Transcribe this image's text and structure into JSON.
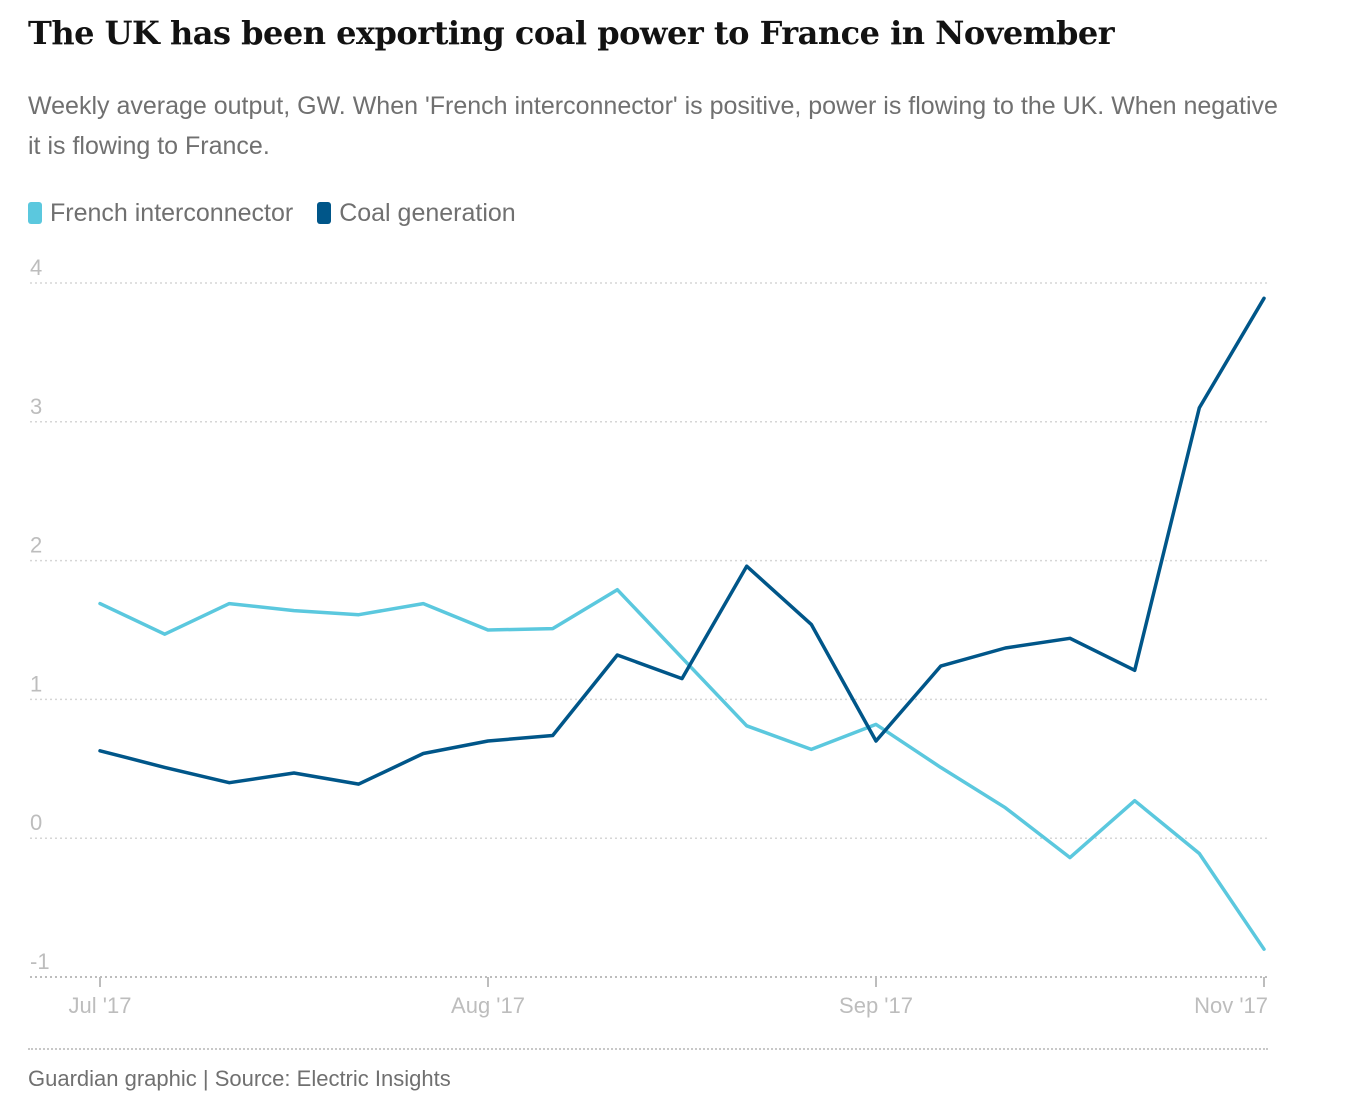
{
  "title": "The UK has been exporting coal power to France in November",
  "subtitle": "Weekly average output, GW. When 'French interconnector' is positive, power is flowing to the UK. When negative it is flowing to France.",
  "source": "Guardian graphic | Source: Electric Insights",
  "chart_data": {
    "type": "line",
    "title": "The UK has been exporting coal power to France in November",
    "xlabel": "",
    "ylabel": "GW",
    "ylim": [
      -1,
      4
    ],
    "yticks": [
      4,
      3,
      2,
      1,
      0,
      -1
    ],
    "xticks": [
      {
        "label": "Jul '17",
        "week": 0
      },
      {
        "label": "Aug '17",
        "week": 6
      },
      {
        "label": "Sep '17",
        "week": 12
      },
      {
        "label": "Nov '17",
        "week": 18
      }
    ],
    "x": [
      0,
      1,
      2,
      3,
      4,
      5,
      6,
      7,
      8,
      9,
      10,
      11,
      12,
      13,
      14,
      15,
      16,
      17,
      18
    ],
    "legend_position": "top-left",
    "series": [
      {
        "name": "French interconnector",
        "color": "#5bc8de",
        "values": [
          1.69,
          1.47,
          1.69,
          1.64,
          1.61,
          1.69,
          1.5,
          1.51,
          1.79,
          1.3,
          0.81,
          0.64,
          0.82,
          0.51,
          0.22,
          -0.14,
          0.27,
          -0.11,
          -0.8
        ]
      },
      {
        "name": "Coal generation",
        "color": "#005689",
        "values": [
          0.63,
          0.51,
          0.4,
          0.47,
          0.39,
          0.61,
          0.7,
          0.74,
          1.32,
          1.15,
          1.96,
          1.54,
          0.7,
          1.24,
          1.37,
          1.44,
          1.21,
          3.1,
          3.89
        ]
      }
    ]
  }
}
